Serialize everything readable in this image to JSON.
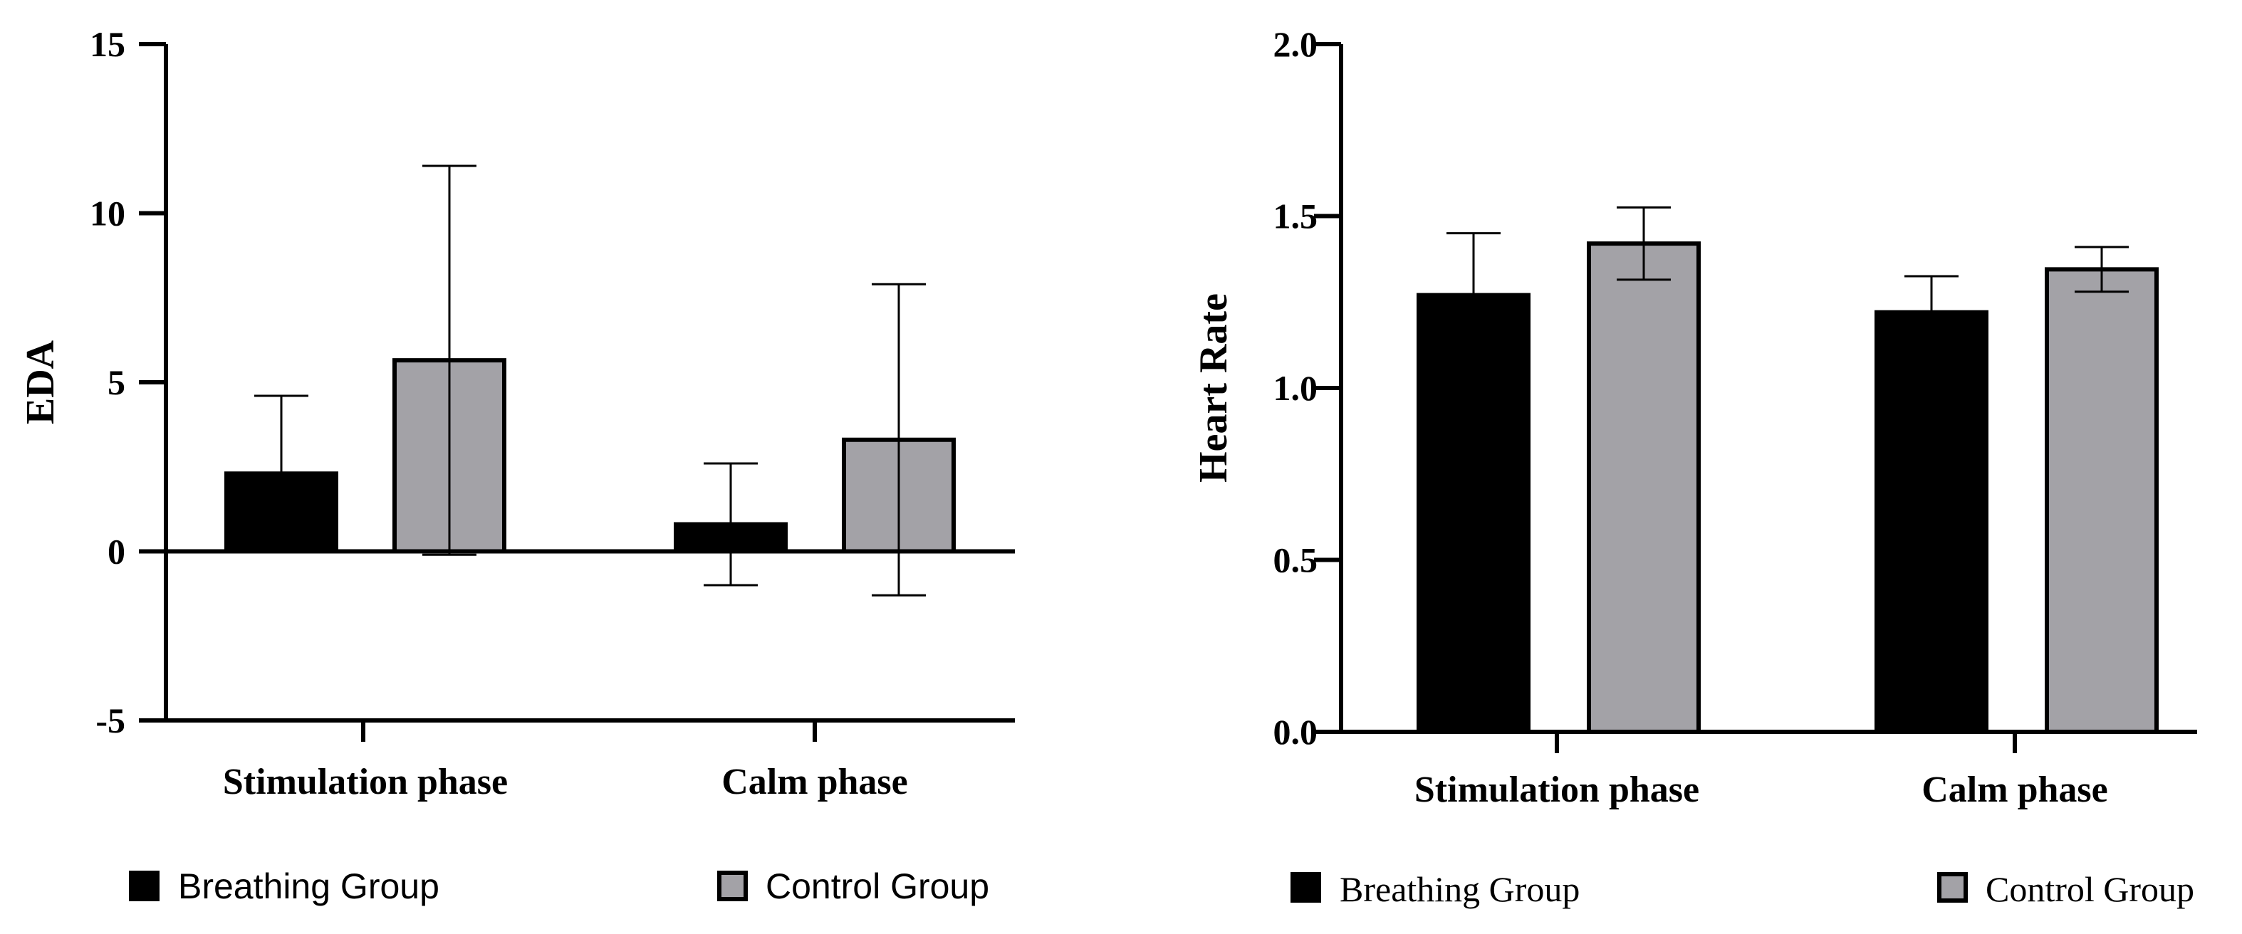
{
  "colors": {
    "breathing": "#000000",
    "control": "#a3a2a7",
    "axis": "#000000"
  },
  "chart_data": [
    {
      "type": "bar",
      "title": "",
      "xlabel": "",
      "ylabel": "EDA",
      "ylim": [
        -5,
        15
      ],
      "yticks": [
        -5,
        0,
        5,
        10,
        15
      ],
      "ytick_labels": [
        "-5",
        "0",
        "5",
        "10",
        "15"
      ],
      "categories": [
        "Stimulation phase",
        "Calm phase"
      ],
      "series": [
        {
          "name": "Breathing Group",
          "values": [
            2.3,
            0.8
          ],
          "errors": [
            2.3,
            1.8
          ]
        },
        {
          "name": "Control Group",
          "values": [
            5.65,
            3.3
          ],
          "errors": [
            5.75,
            4.6
          ]
        }
      ],
      "legend": [
        "Breathing Group",
        "Control Group"
      ],
      "legend_position": "bottom"
    },
    {
      "type": "bar",
      "title": "",
      "xlabel": "",
      "ylabel": "Heart Rate",
      "ylim": [
        0,
        2
      ],
      "yticks": [
        0,
        0.5,
        1,
        1.5,
        2
      ],
      "ytick_labels": [
        "0.0",
        "0.5",
        "1.0",
        "1.5",
        "2.0"
      ],
      "categories": [
        "Stimulation phase",
        "Calm phase"
      ],
      "series": [
        {
          "name": "Breathing Group",
          "values": [
            1.27,
            1.22
          ],
          "errors": [
            0.18,
            0.105
          ]
        },
        {
          "name": "Control Group",
          "values": [
            1.42,
            1.345
          ],
          "errors": [
            0.105,
            0.065
          ]
        }
      ],
      "legend": [
        "Breathing Group",
        "Control Group"
      ],
      "legend_position": "bottom"
    }
  ]
}
